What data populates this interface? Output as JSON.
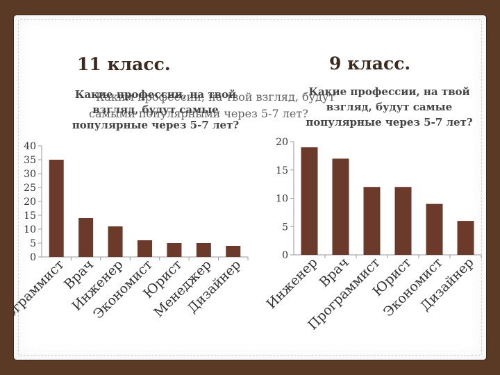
{
  "slide": {
    "heading_left": "11 класс.",
    "heading_right": "9 класс.",
    "question_left": [
      "Какие профессии, на твой",
      "взгляд, будут самые",
      "популярные через 5-7 лет?"
    ],
    "question_right": [
      "Какие профессии, на твой",
      "взгляд, будут самые",
      "популярные через 5-7 лет?"
    ],
    "ghost_text": [
      "Каким профессии, на твой взгляд, будут",
      "самыми популярными через 5-7 лет?"
    ]
  },
  "colors": {
    "bar": "#6b3a2a",
    "axis": "#999999",
    "text": "#333333",
    "background": "#5a3a24"
  },
  "chart_data": [
    {
      "type": "bar",
      "title": "",
      "categories": [
        "Программист",
        "Врач",
        "Инженер",
        "Экономист",
        "Юрист",
        "Менеджер",
        "Дизайнер"
      ],
      "values": [
        35,
        14,
        11,
        6,
        5,
        5,
        4
      ],
      "yticks": [
        "0",
        "5",
        "10",
        "15",
        "20",
        "25",
        "30",
        "35",
        "40"
      ],
      "ylim": [
        0,
        40
      ],
      "xlabel": "",
      "ylabel": ""
    },
    {
      "type": "bar",
      "title": "",
      "categories": [
        "Инженер",
        "Врач",
        "Программист",
        "Юрист",
        "Экономист",
        "Дизайнер"
      ],
      "values": [
        19,
        17,
        12,
        12,
        9,
        6
      ],
      "yticks": [
        "0",
        "5",
        "10",
        "15",
        "20"
      ],
      "ylim": [
        0,
        20
      ],
      "xlabel": "",
      "ylabel": ""
    }
  ]
}
